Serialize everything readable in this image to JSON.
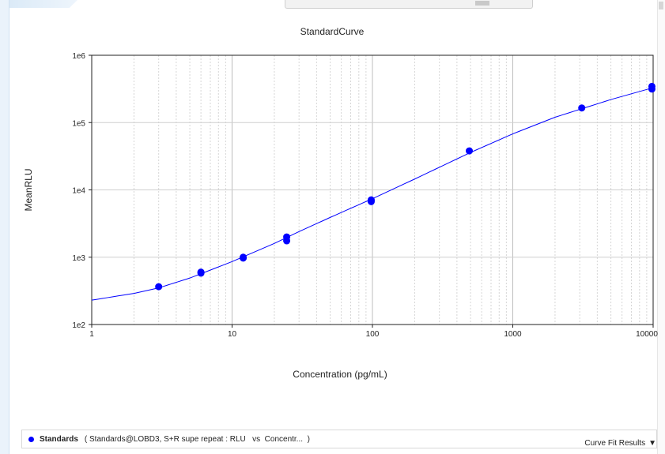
{
  "chart_data": {
    "type": "scatter",
    "title": "StandardCurve",
    "xlabel": "Concentration (pg/mL)",
    "ylabel": "MeanRLU",
    "x_scale": "log",
    "y_scale": "log",
    "xlim": [
      1,
      10000
    ],
    "ylim": [
      100,
      1000000
    ],
    "x_ticks": [
      "1",
      "10",
      "100",
      "1000",
      "10000"
    ],
    "y_ticks": [
      "1e2",
      "1e3",
      "1e4",
      "1e5",
      "1e6"
    ],
    "grid": true,
    "series": [
      {
        "name": "Standards",
        "color": "#0000ff",
        "points": [
          [
            3,
            365
          ],
          [
            6,
            600
          ],
          [
            6,
            580
          ],
          [
            12,
            1000
          ],
          [
            12,
            970
          ],
          [
            24.5,
            2000
          ],
          [
            24.5,
            1750
          ],
          [
            98,
            7100
          ],
          [
            98,
            6700
          ],
          [
            490,
            38000
          ],
          [
            3100,
            165000
          ],
          [
            9800,
            345000
          ],
          [
            9800,
            315000
          ]
        ]
      }
    ],
    "fit_curve": {
      "type": "4PL",
      "color": "#0000ff",
      "points": [
        [
          1,
          230
        ],
        [
          2,
          290
        ],
        [
          3,
          350
        ],
        [
          5,
          490
        ],
        [
          10,
          860
        ],
        [
          20,
          1600
        ],
        [
          30,
          2400
        ],
        [
          50,
          3900
        ],
        [
          100,
          7400
        ],
        [
          200,
          14500
        ],
        [
          500,
          36000
        ],
        [
          1000,
          68000
        ],
        [
          2000,
          120000
        ],
        [
          5000,
          220000
        ],
        [
          10000,
          330000
        ]
      ]
    }
  },
  "legend": {
    "name": "Standards",
    "description": "( Standards@LOBD3, S+R supe repeat : RLU   vs  Concentr...  )"
  },
  "footer": {
    "curve_fit_label": "Curve Fit Results",
    "arrow": "▼"
  }
}
